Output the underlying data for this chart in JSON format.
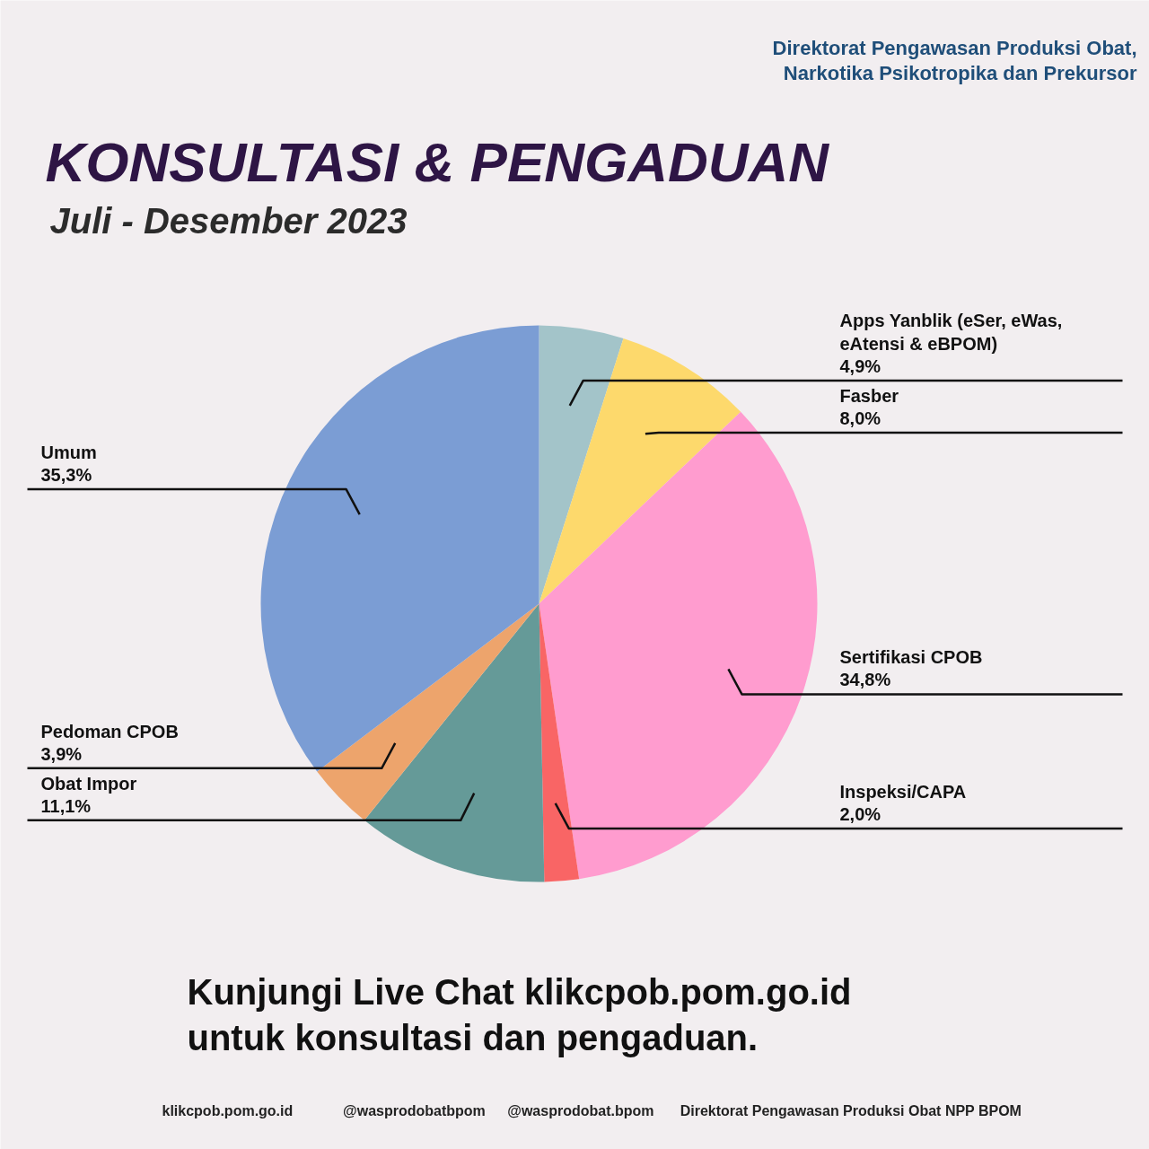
{
  "chart_data": {
    "type": "pie",
    "title": "KONSULTASI & PENGADUAN",
    "subtitle": "Juli - Desember 2023",
    "categories": [
      "Apps Yanblik (eSer, eWas, eAtensi & eBPOM)",
      "Fasber",
      "Sertifikasi CPOB",
      "Inspeksi/CAPA",
      "Obat Impor",
      "Pedoman CPOB",
      "Umum"
    ],
    "values": [
      4.9,
      8.0,
      34.8,
      2.0,
      11.1,
      3.9,
      35.3
    ],
    "colors": [
      "#a3c4c9",
      "#fdd96c",
      "#ff9ccf",
      "#f96565",
      "#659a98",
      "#eda46c",
      "#7b9dd4"
    ],
    "value_labels": [
      "4,9%",
      "8,0%",
      "34,8%",
      "2,0%",
      "11,1%",
      "3,9%",
      "35,3%"
    ],
    "legend": false,
    "annotations": [
      "Direktorat Pengawasan Produksi Obat, Narkotika Psikotropika dan Prekursor",
      "Kunjungi Live Chat klikcpob.pom.go.id untuk konsultasi dan pengaduan.",
      "klikcpob.pom.go.id",
      "@wasprodobatbpom",
      "@wasprodobat.bpom",
      "Direktorat Pengawasan Produksi Obat NPP BPOM"
    ]
  }
}
